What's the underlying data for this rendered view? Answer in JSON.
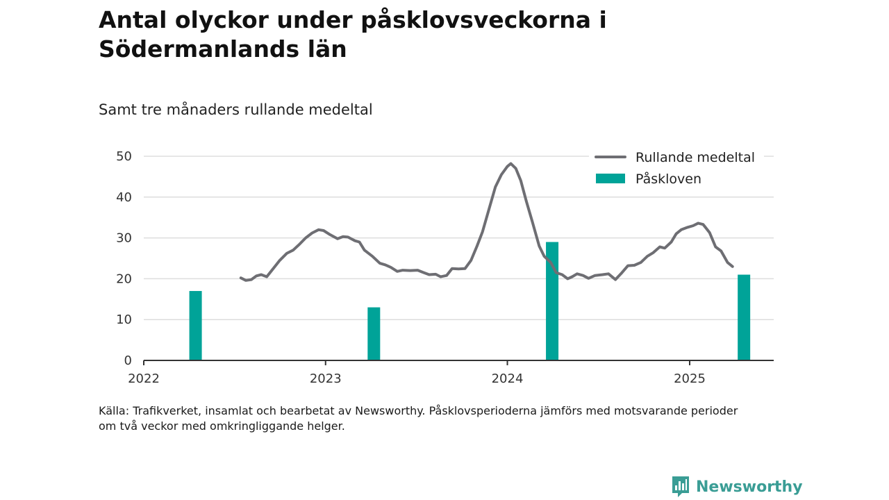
{
  "title": "Antal olyckor under påsklovsveckorna i Södermanlands län",
  "subtitle": "Samt tre månaders rullande medeltal",
  "source": {
    "line1": "Källa: Trafikverket, insamlat och bearbetat av Newsworthy. Påsklovsperioderna jämförs med motsvarande perioder",
    "line2": "om två veckor med omkringliggande helger."
  },
  "brand": {
    "name": "Newsworthy",
    "color": "#3a9d95",
    "icon": "newsworthy-logo-icon"
  },
  "chart_data": {
    "type": "bar+line",
    "colors": {
      "line": "#6e6e73",
      "bars": "#00a398",
      "grid": "#dddddd",
      "axis": "#333333"
    },
    "ylim": [
      0,
      50
    ],
    "yticks": [
      0,
      10,
      20,
      30,
      40,
      50
    ],
    "xlim": [
      "2022-01-01",
      "2025-06-15"
    ],
    "xticks": [
      {
        "date": "2022-01-01",
        "label": "2022"
      },
      {
        "date": "2023-01-01",
        "label": "2023"
      },
      {
        "date": "2024-01-01",
        "label": "2024"
      },
      {
        "date": "2025-01-01",
        "label": "2025"
      }
    ],
    "legend": {
      "position": "top-right",
      "entries": [
        {
          "label": "Rullande medeltal",
          "kind": "line"
        },
        {
          "label": "Påskloven",
          "kind": "bar"
        }
      ]
    },
    "bars": {
      "name": "Påskloven",
      "points": [
        {
          "date": "2022-04-15",
          "value": 17
        },
        {
          "date": "2023-04-08",
          "value": 13
        },
        {
          "date": "2024-03-31",
          "value": 29
        },
        {
          "date": "2025-04-20",
          "value": 21
        }
      ]
    },
    "line": {
      "name": "Rullande medeltal",
      "points": [
        [
          "2022-07-15",
          20.2
        ],
        [
          "2022-07-25",
          19.6
        ],
        [
          "2022-08-05",
          19.8
        ],
        [
          "2022-08-15",
          20.7
        ],
        [
          "2022-08-25",
          21.0
        ],
        [
          "2022-09-05",
          20.5
        ],
        [
          "2022-09-20",
          22.8
        ],
        [
          "2022-10-01",
          24.5
        ],
        [
          "2022-10-15",
          26.2
        ],
        [
          "2022-10-28",
          27.0
        ],
        [
          "2022-11-10",
          28.5
        ],
        [
          "2022-11-22",
          30.0
        ],
        [
          "2022-12-05",
          31.2
        ],
        [
          "2022-12-18",
          32.0
        ],
        [
          "2022-12-28",
          31.8
        ],
        [
          "2023-01-10",
          30.8
        ],
        [
          "2023-01-25",
          29.8
        ],
        [
          "2023-02-05",
          30.3
        ],
        [
          "2023-02-15",
          30.2
        ],
        [
          "2023-03-01",
          29.3
        ],
        [
          "2023-03-10",
          29.0
        ],
        [
          "2023-03-20",
          27.0
        ],
        [
          "2023-04-05",
          25.5
        ],
        [
          "2023-04-20",
          23.8
        ],
        [
          "2023-05-01",
          23.4
        ],
        [
          "2023-05-12",
          22.8
        ],
        [
          "2023-05-25",
          21.8
        ],
        [
          "2023-06-05",
          22.1
        ],
        [
          "2023-06-20",
          22.0
        ],
        [
          "2023-07-05",
          22.1
        ],
        [
          "2023-07-15",
          21.6
        ],
        [
          "2023-07-28",
          21.0
        ],
        [
          "2023-08-10",
          21.1
        ],
        [
          "2023-08-20",
          20.5
        ],
        [
          "2023-09-01",
          20.8
        ],
        [
          "2023-09-12",
          22.5
        ],
        [
          "2023-09-25",
          22.4
        ],
        [
          "2023-10-08",
          22.5
        ],
        [
          "2023-10-20",
          24.5
        ],
        [
          "2023-11-01",
          28.0
        ],
        [
          "2023-11-12",
          31.5
        ],
        [
          "2023-11-25",
          37.0
        ],
        [
          "2023-12-08",
          42.5
        ],
        [
          "2023-12-20",
          45.5
        ],
        [
          "2024-01-01",
          47.5
        ],
        [
          "2024-01-08",
          48.2
        ],
        [
          "2024-01-18",
          47.0
        ],
        [
          "2024-01-28",
          44.0
        ],
        [
          "2024-02-08",
          39.0
        ],
        [
          "2024-02-20",
          34.0
        ],
        [
          "2024-03-05",
          28.0
        ],
        [
          "2024-03-15",
          25.5
        ],
        [
          "2024-03-28",
          24.0
        ],
        [
          "2024-04-08",
          21.5
        ],
        [
          "2024-04-20",
          21.0
        ],
        [
          "2024-05-01",
          20.0
        ],
        [
          "2024-05-10",
          20.5
        ],
        [
          "2024-05-20",
          21.2
        ],
        [
          "2024-06-01",
          20.8
        ],
        [
          "2024-06-12",
          20.1
        ],
        [
          "2024-06-25",
          20.8
        ],
        [
          "2024-07-10",
          21.0
        ],
        [
          "2024-07-22",
          21.2
        ],
        [
          "2024-08-05",
          19.8
        ],
        [
          "2024-08-18",
          21.5
        ],
        [
          "2024-08-30",
          23.2
        ],
        [
          "2024-09-12",
          23.3
        ],
        [
          "2024-09-25",
          24.0
        ],
        [
          "2024-10-08",
          25.5
        ],
        [
          "2024-10-20",
          26.4
        ],
        [
          "2024-11-02",
          27.8
        ],
        [
          "2024-11-12",
          27.5
        ],
        [
          "2024-11-25",
          29.0
        ],
        [
          "2024-12-05",
          31.0
        ],
        [
          "2024-12-15",
          32.0
        ],
        [
          "2024-12-28",
          32.6
        ],
        [
          "2025-01-08",
          33.0
        ],
        [
          "2025-01-18",
          33.6
        ],
        [
          "2025-01-28",
          33.3
        ],
        [
          "2025-02-10",
          31.3
        ],
        [
          "2025-02-22",
          27.8
        ],
        [
          "2025-03-05",
          26.8
        ],
        [
          "2025-03-18",
          24.0
        ],
        [
          "2025-03-28",
          23.0
        ]
      ]
    }
  }
}
